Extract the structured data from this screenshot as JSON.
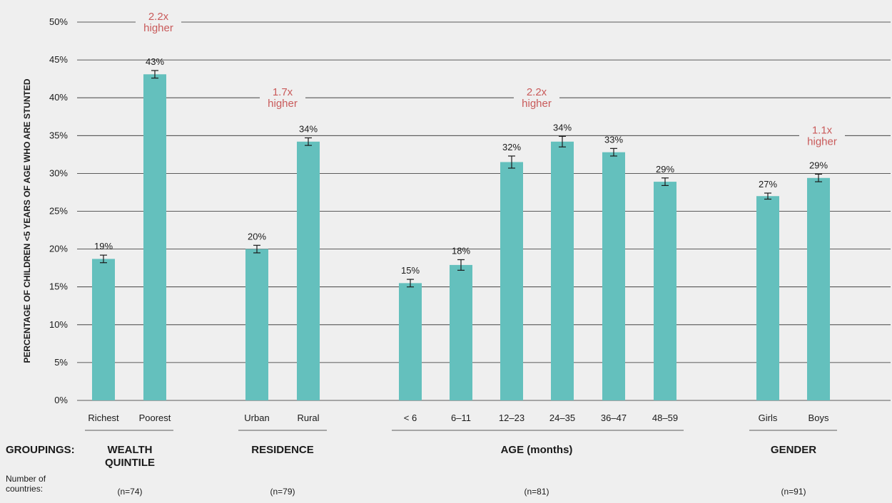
{
  "chart_data": {
    "type": "bar",
    "ylabel": "PERCENTAGE OF CHILDREN <5 YEARS  OF AGE WHO ARE STUNTED",
    "ylim": [
      0,
      50
    ],
    "yticks": [
      "0%",
      "5%",
      "10%",
      "15%",
      "20%",
      "25%",
      "30%",
      "35%",
      "40%",
      "45%",
      "50%"
    ],
    "grid": true,
    "bar_color": "#64c0bd",
    "annotation_color": "#c95a5a",
    "categories": [
      "Richest",
      "Poorest",
      "Urban",
      "Rural",
      "< 6",
      "6–11",
      "12–23",
      "24–35",
      "36–47",
      "48–59",
      "Girls",
      "Boys"
    ],
    "values": [
      18.7,
      43.1,
      20.0,
      34.2,
      15.5,
      17.9,
      31.5,
      34.2,
      32.8,
      28.9,
      27.0,
      29.4
    ],
    "value_labels": [
      "19%",
      "43%",
      "20%",
      "34%",
      "15%",
      "18%",
      "32%",
      "34%",
      "33%",
      "29%",
      "27%",
      "29%"
    ],
    "errors": [
      0.5,
      0.5,
      0.5,
      0.5,
      0.5,
      0.7,
      0.8,
      0.7,
      0.5,
      0.5,
      0.4,
      0.5
    ],
    "groups": [
      {
        "label": "WEALTH",
        "label2": "QUINTILE",
        "n": "(n=74)",
        "ratio": "2.2x",
        "ratio2": "higher",
        "ratio_level": 50
      },
      {
        "label": "RESIDENCE",
        "label2": "",
        "n": "(n=79)",
        "ratio": "1.7x",
        "ratio2": "higher",
        "ratio_level": 40
      },
      {
        "label": "AGE (months)",
        "label2": "",
        "n": "(n=81)",
        "ratio": "2.2x",
        "ratio2": "higher",
        "ratio_level": 40
      },
      {
        "label": "GENDER",
        "label2": "",
        "n": "(n=91)",
        "ratio": "1.1x",
        "ratio2": "higher",
        "ratio_level": 35
      }
    ],
    "groupings_label": "GROUPINGS:",
    "countries_label_line1": "Number of",
    "countries_label_line2": "countries:"
  }
}
